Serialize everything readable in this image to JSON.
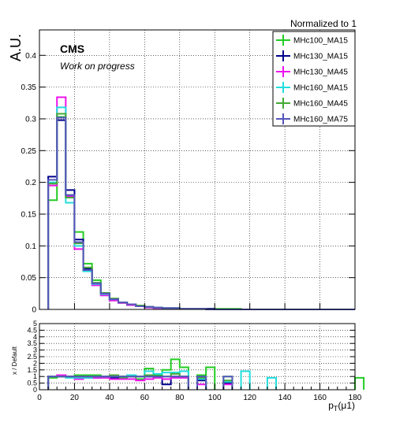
{
  "header": {
    "normalization": "Normalized to 1"
  },
  "labels": {
    "experiment": "CMS",
    "status": "Work on progress"
  },
  "colors": {
    "MHc100_MA15": "#22cc22",
    "MHc130_MA15": "#00008b",
    "MHc130_MA45": "#ee11ee",
    "MHc160_MA15": "#22dddd",
    "MHc160_MA45": "#44aa33",
    "MHc160_MA75": "#5555bb"
  },
  "chart_data": [
    {
      "type": "step-histogram",
      "ylabel": "A.U.",
      "xlim": [
        0,
        180
      ],
      "ylim": [
        0,
        0.44
      ],
      "y_ticks": [
        0,
        0.05,
        0.1,
        0.15,
        0.2,
        0.25,
        0.3,
        0.35,
        0.4
      ],
      "y_tick_labels": [
        "0",
        "0.05",
        "0.1",
        "0.15",
        "0.2",
        "0.25",
        "0.3",
        "0.35",
        "0.4"
      ],
      "grid": true,
      "legend_position": "top-right",
      "bin_width": 5,
      "x_bin_edges_start": 5,
      "series": [
        {
          "name": "MHc100_MA15",
          "values": [
            0.172,
            0.303,
            0.18,
            0.122,
            0.072,
            0.046,
            0.025,
            0.017,
            0.011,
            0.008,
            0.006,
            0.004,
            0.003,
            0.002,
            0.002,
            0.001,
            0.001,
            0.001,
            0.001,
            0.001,
            0.001,
            0.001,
            0.0,
            0.0,
            0.0,
            0.0,
            0.0,
            0.0,
            0.0,
            0.0,
            0.0,
            0.0,
            0.0,
            0.0,
            0.0
          ]
        },
        {
          "name": "MHc130_MA15",
          "values": [
            0.209,
            0.298,
            0.188,
            0.11,
            0.064,
            0.04,
            0.024,
            0.016,
            0.011,
            0.007,
            0.005,
            0.004,
            0.003,
            0.002,
            0.002,
            0.001,
            0.001,
            0.001,
            0.001,
            0.0,
            0.0,
            0.0,
            0.0,
            0.0,
            0.0,
            0.0,
            0.0,
            0.0,
            0.0,
            0.0,
            0.0,
            0.0,
            0.0,
            0.0,
            0.0
          ]
        },
        {
          "name": "MHc130_MA45",
          "values": [
            0.195,
            0.334,
            0.178,
            0.095,
            0.062,
            0.038,
            0.022,
            0.014,
            0.01,
            0.007,
            0.005,
            0.003,
            0.002,
            0.002,
            0.001,
            0.001,
            0.001,
            0.001,
            0.0,
            0.0,
            0.0,
            0.0,
            0.0,
            0.0,
            0.0,
            0.0,
            0.0,
            0.0,
            0.0,
            0.0,
            0.0,
            0.0,
            0.0,
            0.0,
            0.0
          ]
        },
        {
          "name": "MHc160_MA15",
          "values": [
            0.2,
            0.318,
            0.168,
            0.1,
            0.06,
            0.04,
            0.024,
            0.016,
            0.011,
            0.008,
            0.005,
            0.004,
            0.003,
            0.002,
            0.002,
            0.001,
            0.001,
            0.001,
            0.0,
            0.0,
            0.0,
            0.0,
            0.0,
            0.0,
            0.0,
            0.0,
            0.0,
            0.0,
            0.0,
            0.0,
            0.0,
            0.0,
            0.0,
            0.0,
            0.0
          ]
        },
        {
          "name": "MHc160_MA45",
          "values": [
            0.198,
            0.308,
            0.176,
            0.104,
            0.066,
            0.042,
            0.026,
            0.017,
            0.011,
            0.008,
            0.006,
            0.004,
            0.003,
            0.002,
            0.002,
            0.001,
            0.001,
            0.001,
            0.0,
            0.0,
            0.0,
            0.0,
            0.0,
            0.0,
            0.0,
            0.0,
            0.0,
            0.0,
            0.0,
            0.0,
            0.0,
            0.0,
            0.0,
            0.0,
            0.0
          ]
        },
        {
          "name": "MHc160_MA75",
          "values": [
            0.204,
            0.302,
            0.18,
            0.106,
            0.062,
            0.041,
            0.025,
            0.016,
            0.011,
            0.008,
            0.005,
            0.004,
            0.003,
            0.002,
            0.002,
            0.001,
            0.001,
            0.001,
            0.0,
            0.0,
            0.0,
            0.0,
            0.0,
            0.0,
            0.0,
            0.0,
            0.0,
            0.0,
            0.0,
            0.0,
            0.0,
            0.0,
            0.0,
            0.0,
            0.0
          ]
        }
      ]
    },
    {
      "type": "step-histogram",
      "ylabel": "x / Default",
      "xlabel_main": "p",
      "xlabel_sub": "T",
      "xlabel_rest": "(μ1)",
      "xlim": [
        0,
        180
      ],
      "ylim": [
        0,
        5
      ],
      "y_ticks": [
        0,
        0.5,
        1,
        1.5,
        2,
        2.5,
        3,
        3.5,
        4,
        4.5,
        5
      ],
      "y_tick_labels": [
        "0",
        "0.5",
        "1",
        "1.5",
        "2",
        "2.5",
        "3",
        "3.5",
        "4",
        "4.5",
        "5"
      ],
      "x_ticks": [
        0,
        20,
        40,
        60,
        80,
        100,
        120,
        140,
        160,
        180
      ],
      "x_tick_labels": [
        "0",
        "20",
        "40",
        "60",
        "80",
        "100",
        "120",
        "140",
        "160",
        "180"
      ],
      "grid": true,
      "bin_width": 5,
      "x_bin_edges_start": 5,
      "series": [
        {
          "name": "MHc100_MA15",
          "values": [
            0.9,
            1.0,
            1.0,
            1.1,
            1.1,
            1.1,
            1.0,
            1.0,
            0.9,
            1.1,
            0.8,
            1.6,
            1.1,
            1.5,
            2.3,
            1.7,
            null,
            1.1,
            1.7,
            null,
            1.0,
            null,
            null,
            null,
            null,
            null,
            null,
            null,
            null,
            null,
            null,
            null,
            null,
            null,
            null,
            0.9
          ]
        },
        {
          "name": "MHc130_MA15",
          "values": [
            1.0,
            1.0,
            1.0,
            0.9,
            0.9,
            0.9,
            1.0,
            0.9,
            1.0,
            1.0,
            1.0,
            1.0,
            1.0,
            0.4,
            1.0,
            1.0,
            null,
            0.7,
            null,
            null,
            0.5,
            null,
            null,
            null,
            null,
            null,
            null,
            null,
            null,
            null,
            null,
            null,
            null,
            null,
            null,
            null
          ]
        },
        {
          "name": "MHc130_MA45",
          "values": [
            1.0,
            1.1,
            1.0,
            0.8,
            0.9,
            0.9,
            0.9,
            0.8,
            0.8,
            0.8,
            0.7,
            0.8,
            0.9,
            0.8,
            0.9,
            0.9,
            null,
            0.4,
            null,
            null,
            0.4,
            null,
            null,
            null,
            null,
            null,
            null,
            null,
            null,
            null,
            null,
            null,
            null,
            null,
            null,
            null
          ]
        },
        {
          "name": "MHc160_MA15",
          "values": [
            1.0,
            1.0,
            0.9,
            0.9,
            0.9,
            1.0,
            1.0,
            1.0,
            1.0,
            1.1,
            1.0,
            1.4,
            1.2,
            1.3,
            1.3,
            1.4,
            null,
            0.8,
            null,
            null,
            0.6,
            null,
            1.4,
            null,
            null,
            0.9,
            null,
            null,
            null,
            null,
            null,
            null,
            null,
            null,
            null,
            null
          ]
        },
        {
          "name": "MHc160_MA45",
          "values": [
            1.0,
            1.0,
            1.0,
            1.0,
            1.0,
            1.0,
            1.0,
            1.1,
            1.0,
            1.0,
            1.0,
            1.1,
            1.0,
            1.0,
            1.2,
            1.0,
            null,
            0.9,
            null,
            null,
            0.7,
            null,
            null,
            null,
            null,
            null,
            null,
            null,
            null,
            null,
            null,
            null,
            null,
            null,
            null,
            null
          ]
        },
        {
          "name": "MHc160_MA75",
          "values": [
            1.0,
            1.0,
            1.0,
            1.0,
            1.0,
            1.0,
            1.0,
            1.0,
            1.0,
            1.0,
            1.0,
            1.0,
            1.0,
            1.0,
            1.0,
            1.0,
            null,
            1.0,
            null,
            null,
            1.0,
            null,
            null,
            null,
            null,
            null,
            null,
            null,
            null,
            null,
            null,
            null,
            null,
            null,
            null,
            null
          ]
        }
      ]
    }
  ]
}
